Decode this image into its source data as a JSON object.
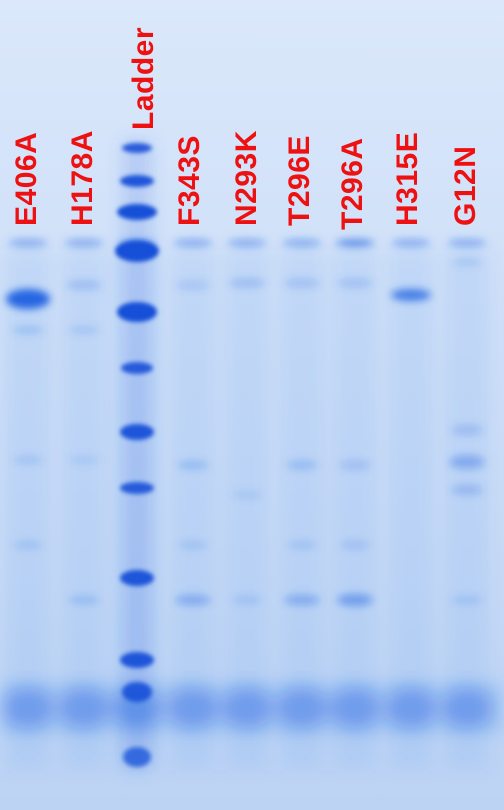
{
  "image": {
    "kind": "SDS-PAGE gel stained with Coomassie blue",
    "lanes": [
      {
        "label": "E406A"
      },
      {
        "label": "H178A"
      },
      {
        "label": "Ladder"
      },
      {
        "label": "F343S"
      },
      {
        "label": "N293K"
      },
      {
        "label": "T296E"
      },
      {
        "label": "T296A"
      },
      {
        "label": "H315E"
      },
      {
        "label": "G12N"
      }
    ],
    "colors": {
      "gel_background": "#cfe0f7",
      "band": "#1a5fe0",
      "label_text": "#ee1111"
    }
  }
}
